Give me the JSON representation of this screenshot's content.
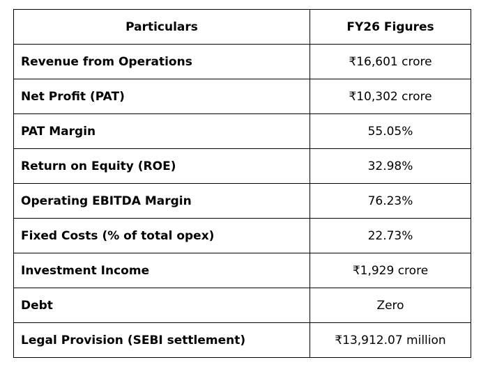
{
  "table": {
    "headers": [
      "Particulars",
      "FY26 Figures"
    ],
    "rows": [
      {
        "label": "Revenue from Operations",
        "value": "₹16,601 crore"
      },
      {
        "label": "Net Profit (PAT)",
        "value": "₹10,302 crore"
      },
      {
        "label": "PAT Margin",
        "value": "55.05%"
      },
      {
        "label": "Return on Equity (ROE)",
        "value": "32.98%"
      },
      {
        "label": "Operating EBITDA Margin",
        "value": "76.23%"
      },
      {
        "label": "Fixed Costs (% of total opex)",
        "value": "22.73%"
      },
      {
        "label": "Investment Income",
        "value": "₹1,929 crore"
      },
      {
        "label": "Debt",
        "value": "Zero"
      },
      {
        "label": "Legal Provision (SEBI settlement)",
        "value": "₹13,912.07 million"
      }
    ]
  }
}
